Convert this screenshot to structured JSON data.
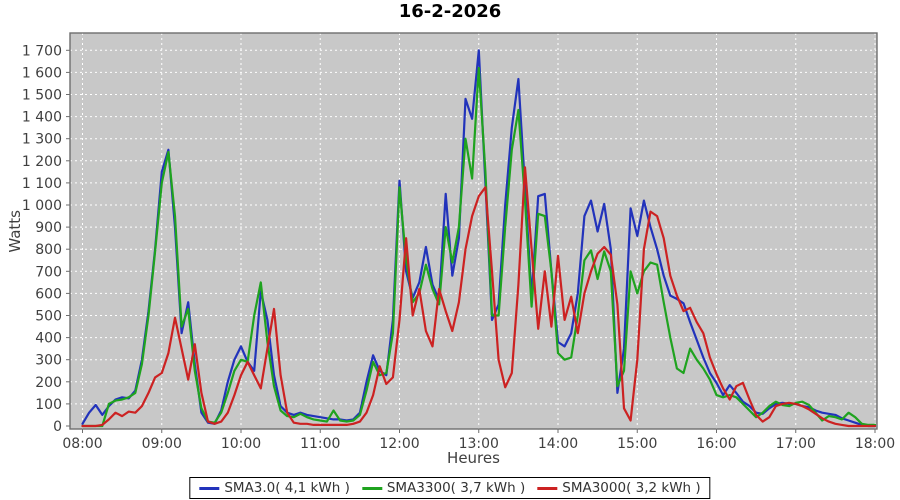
{
  "title": "16-2-2026",
  "axis": {
    "ylabel": "Watts",
    "xlabel": "Heures"
  },
  "colors": {
    "plot_bg": "#c8c8c8",
    "plot_border": "#6e6e6e",
    "gridline": "#ffffff",
    "tick_label": "#3f3f3f",
    "series_blue": "#2233bb",
    "series_green": "#1fa31f",
    "series_red": "#cc2222"
  },
  "chart_data": {
    "type": "line",
    "title": "16-2-2026",
    "xlabel": "Heures",
    "ylabel": "Watts",
    "ylim": [
      0,
      1750
    ],
    "y_tick_step": 100,
    "y_tick_labels": [
      "0",
      "100",
      "200",
      "300",
      "400",
      "500",
      "600",
      "700",
      "800",
      "900",
      "1 000",
      "1 100",
      "1 200",
      "1 300",
      "1 400",
      "1 500",
      "1 600",
      "1 700"
    ],
    "x_tick_labels": [
      "08:00",
      "09:00",
      "10:00",
      "11:00",
      "12:00",
      "13:00",
      "14:00",
      "15:00",
      "16:00",
      "17:00",
      "18:00"
    ],
    "x_start": "08:00",
    "x_end": "18:00",
    "sample_step_minutes": 5,
    "grid": "white dashed on gray plot background",
    "legend_position": "bottom-center",
    "series": [
      {
        "name": "SMA3.0( 4,1 kWh )",
        "color": "#2233bb",
        "values": [
          10,
          60,
          95,
          50,
          90,
          120,
          130,
          125,
          160,
          300,
          520,
          800,
          1150,
          1250,
          900,
          420,
          560,
          280,
          60,
          15,
          10,
          70,
          200,
          300,
          360,
          290,
          250,
          610,
          480,
          230,
          90,
          60,
          50,
          60,
          50,
          45,
          40,
          35,
          30,
          30,
          25,
          30,
          60,
          200,
          320,
          250,
          230,
          480,
          1110,
          700,
          580,
          650,
          810,
          640,
          570,
          1050,
          680,
          850,
          1480,
          1390,
          1700,
          1100,
          480,
          550,
          1000,
          1350,
          1570,
          1080,
          585,
          1040,
          1050,
          700,
          380,
          360,
          420,
          600,
          950,
          1020,
          880,
          1005,
          800,
          150,
          350,
          985,
          860,
          1020,
          900,
          800,
          680,
          590,
          575,
          555,
          470,
          390,
          310,
          240,
          195,
          140,
          185,
          150,
          110,
          90,
          60,
          55,
          80,
          100,
          105,
          100,
          100,
          90,
          85,
          70,
          60,
          55,
          50,
          35,
          25,
          15,
          5,
          0,
          0
        ]
      },
      {
        "name": "SMA3300( 3,7 kWh )",
        "color": "#1fa31f",
        "values": [
          0,
          0,
          0,
          0,
          100,
          115,
          120,
          130,
          150,
          280,
          500,
          790,
          1100,
          1240,
          950,
          450,
          530,
          250,
          80,
          20,
          15,
          60,
          150,
          250,
          300,
          290,
          500,
          650,
          380,
          180,
          70,
          45,
          40,
          55,
          40,
          30,
          25,
          20,
          70,
          25,
          20,
          25,
          50,
          160,
          290,
          230,
          240,
          420,
          1080,
          750,
          560,
          600,
          730,
          620,
          550,
          900,
          740,
          900,
          1300,
          1120,
          1620,
          1150,
          500,
          500,
          900,
          1250,
          1430,
          1020,
          540,
          960,
          950,
          700,
          330,
          300,
          310,
          500,
          750,
          795,
          665,
          790,
          700,
          180,
          250,
          700,
          600,
          700,
          740,
          730,
          560,
          400,
          260,
          240,
          350,
          300,
          260,
          210,
          140,
          130,
          140,
          130,
          100,
          70,
          40,
          60,
          90,
          110,
          95,
          90,
          105,
          110,
          95,
          60,
          25,
          45,
          40,
          30,
          60,
          40,
          10,
          5,
          5
        ]
      },
      {
        "name": "SMA3000( 3,2 kWh )",
        "color": "#cc2222",
        "values": [
          0,
          0,
          0,
          5,
          30,
          60,
          45,
          65,
          60,
          90,
          150,
          220,
          240,
          330,
          490,
          350,
          210,
          370,
          150,
          20,
          10,
          20,
          60,
          140,
          230,
          290,
          230,
          170,
          350,
          530,
          230,
          60,
          15,
          10,
          10,
          5,
          5,
          5,
          5,
          5,
          5,
          10,
          20,
          60,
          140,
          270,
          190,
          220,
          480,
          850,
          500,
          620,
          430,
          360,
          620,
          520,
          430,
          560,
          800,
          950,
          1040,
          1080,
          700,
          300,
          175,
          240,
          640,
          1170,
          800,
          440,
          700,
          450,
          770,
          480,
          585,
          420,
          600,
          700,
          780,
          810,
          775,
          550,
          80,
          25,
          300,
          800,
          970,
          950,
          850,
          680,
          590,
          520,
          535,
          470,
          420,
          310,
          235,
          170,
          120,
          180,
          195,
          120,
          50,
          20,
          40,
          90,
          100,
          105,
          100,
          90,
          75,
          55,
          35,
          20,
          10,
          5,
          0,
          0,
          0,
          0,
          0
        ]
      }
    ]
  }
}
